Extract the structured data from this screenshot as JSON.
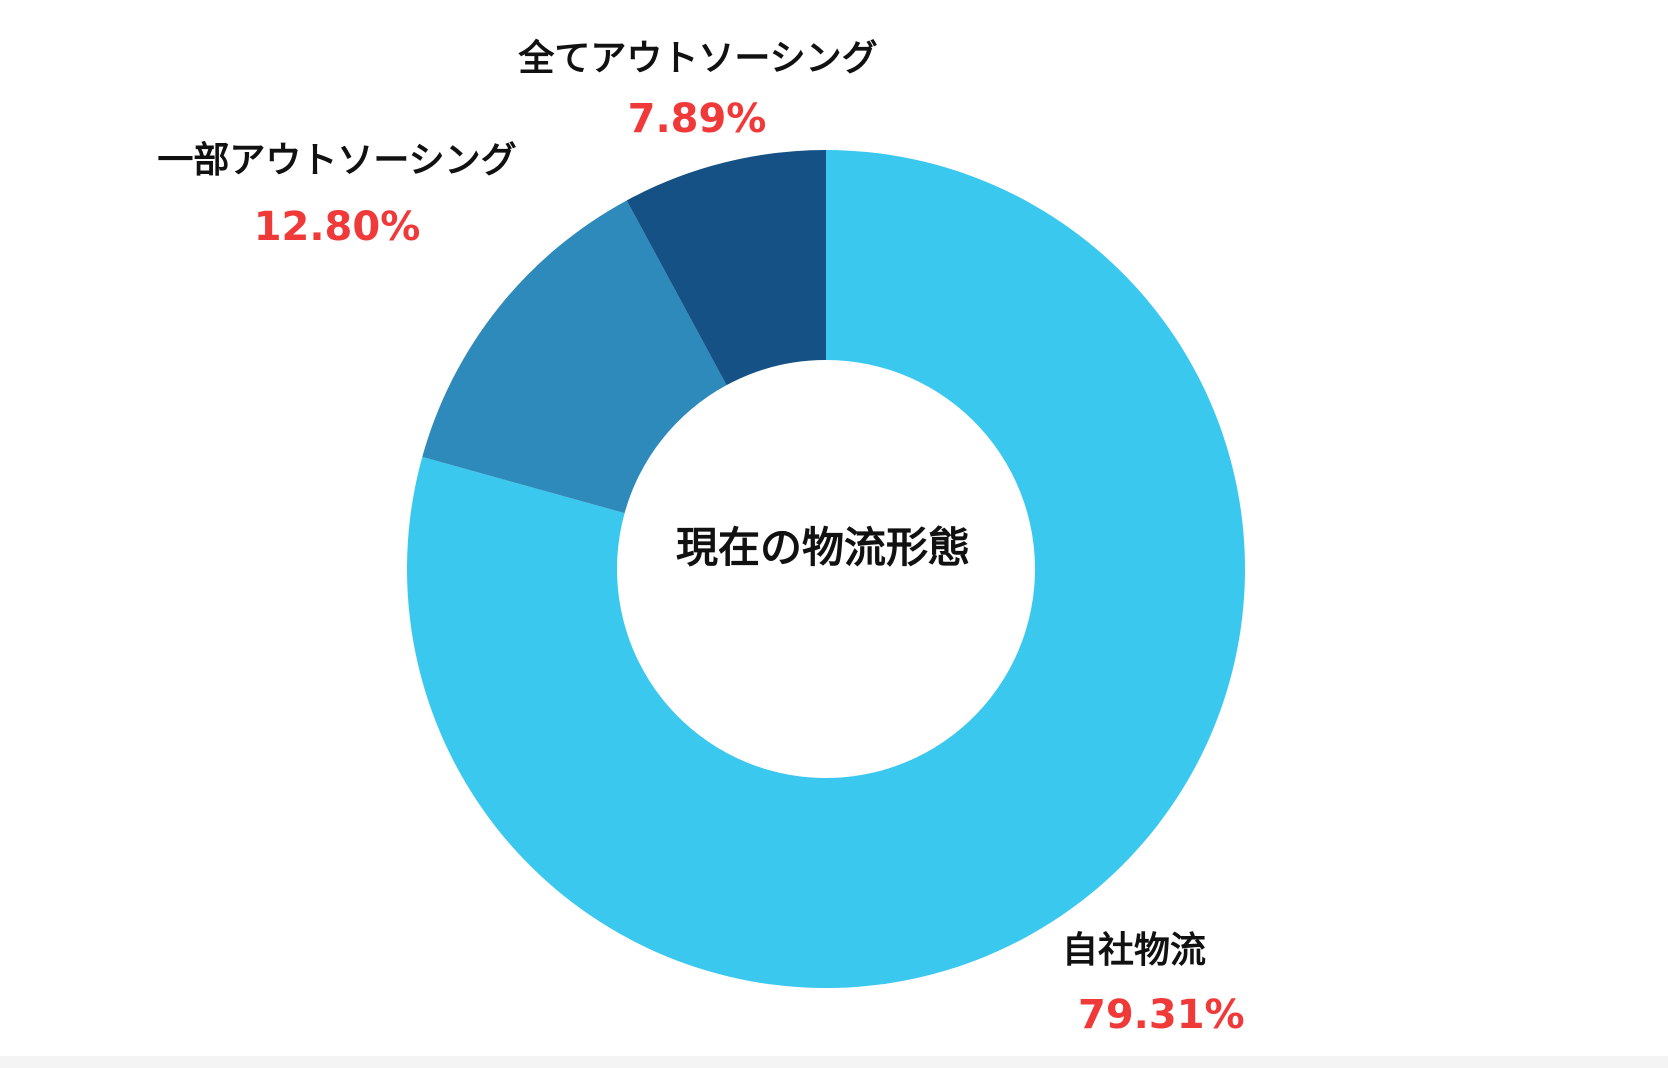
{
  "chart_data": {
    "type": "pie",
    "variant": "donut",
    "center_label": "現在の物流形態",
    "start": "12 o'clock",
    "direction": "clockwise",
    "segments": [
      {
        "label": "自社物流",
        "value": 79.31,
        "value_label": "79.31%",
        "color": "#3bc8ef"
      },
      {
        "label": "一部アウトソーシング",
        "value": 12.8,
        "value_label": "12.80%",
        "color": "#2e8aba"
      },
      {
        "label": "全てアウトソーシング",
        "value": 7.89,
        "value_label": "7.89%",
        "color": "#165185"
      }
    ],
    "value_label_color": "#f03a3a",
    "label_color": "#111111"
  }
}
